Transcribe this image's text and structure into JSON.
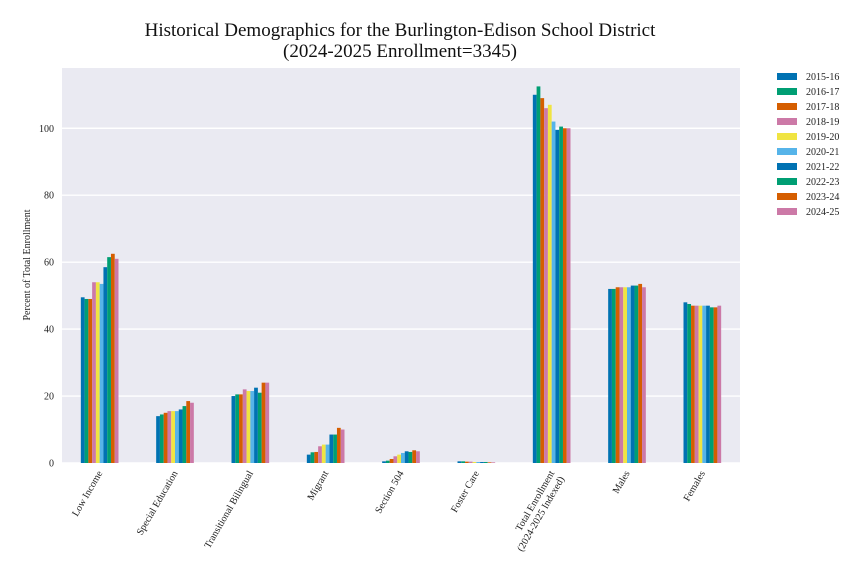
{
  "chart_data": {
    "type": "bar",
    "title": "Historical Demographics for the Burlington-Edison School District",
    "subtitle": "(2024-2025 Enrollment=3345)",
    "xlabel": "",
    "ylabel": "Percent of Total Enrollment",
    "ylim": [
      0,
      118
    ],
    "yticks": [
      0,
      20,
      40,
      60,
      80,
      100
    ],
    "grid": true,
    "legend": "outside-top-right",
    "categories": [
      "Low Income",
      "Special Education",
      "Transitional Bilingual",
      "Migrant",
      "Section 504",
      "Foster Care",
      "Total Enrollment\n(2024-2025 Indexed)",
      "Males",
      "Females"
    ],
    "series": [
      {
        "name": "2015-16",
        "color": "#0072B2",
        "values": [
          49.5,
          14.0,
          20.0,
          2.5,
          0.5,
          0.5,
          110.0,
          52.0,
          48.0
        ]
      },
      {
        "name": "2016-17",
        "color": "#009E73",
        "values": [
          49.0,
          14.5,
          20.5,
          3.2,
          0.7,
          0.5,
          112.5,
          52.0,
          47.5
        ]
      },
      {
        "name": "2017-18",
        "color": "#D55E00",
        "values": [
          49.0,
          15.0,
          20.5,
          3.3,
          1.2,
          0.4,
          109.0,
          52.5,
          47.0
        ]
      },
      {
        "name": "2018-19",
        "color": "#CC79A7",
        "values": [
          54.0,
          15.5,
          22.0,
          5.0,
          2.0,
          0.4,
          106.0,
          52.5,
          47.0
        ]
      },
      {
        "name": "2019-20",
        "color": "#F0E442",
        "values": [
          54.0,
          15.5,
          21.5,
          5.5,
          2.5,
          0.3,
          107.0,
          52.5,
          47.0
        ]
      },
      {
        "name": "2020-21",
        "color": "#56B4E9",
        "values": [
          53.5,
          15.5,
          21.5,
          5.5,
          3.0,
          0.3,
          102.0,
          52.5,
          47.0
        ]
      },
      {
        "name": "2021-22",
        "color": "#0072B2",
        "values": [
          58.5,
          16.0,
          22.5,
          8.5,
          3.5,
          0.3,
          99.5,
          53.0,
          47.0
        ]
      },
      {
        "name": "2022-23",
        "color": "#009E73",
        "values": [
          61.5,
          17.0,
          21.0,
          8.5,
          3.3,
          0.3,
          100.5,
          53.0,
          46.5
        ]
      },
      {
        "name": "2023-24",
        "color": "#D55E00",
        "values": [
          62.5,
          18.5,
          24.0,
          10.5,
          3.8,
          0.2,
          100.0,
          53.5,
          46.5
        ]
      },
      {
        "name": "2024-25",
        "color": "#CC79A7",
        "values": [
          61.0,
          18.0,
          24.0,
          10.0,
          3.5,
          0.2,
          100.0,
          52.5,
          47.0
        ]
      }
    ]
  }
}
